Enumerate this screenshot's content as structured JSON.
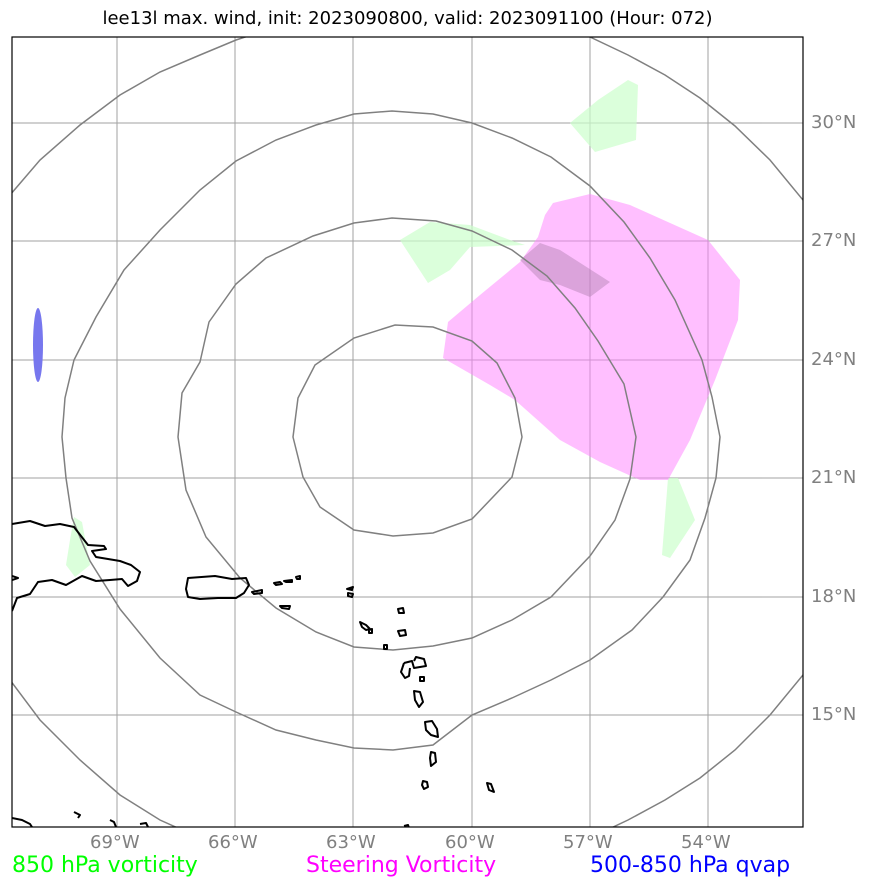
{
  "title": "lee13l max. wind, init: 2023090800, valid: 2023091100 (Hour: 072)",
  "lat_labels": [
    "30°N",
    "27°N",
    "24°N",
    "21°N",
    "18°N",
    "15°N"
  ],
  "lon_labels": [
    "69°W",
    "66°W",
    "63°W",
    "60°W",
    "57°W",
    "54°W"
  ],
  "legend": {
    "vort850": "850 hPa vorticity",
    "steering": "Steering Vorticity",
    "qvap": "500-850 hPa qvap"
  },
  "colors": {
    "vort850": "#00ff00",
    "steering": "#ff00ff",
    "qvap": "#0000ff",
    "grid": "#999999",
    "rings": "#808080",
    "coast": "#000000"
  }
}
